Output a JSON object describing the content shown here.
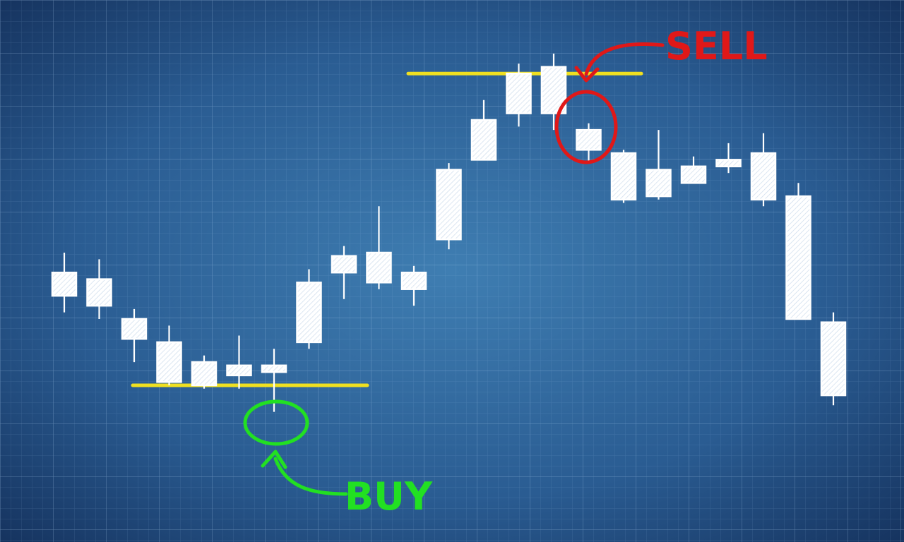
{
  "chart_data": {
    "type": "candlestick",
    "title": "",
    "xlabel": "",
    "ylabel": "",
    "ylim": [
      0,
      100
    ],
    "grid": true,
    "candles": [
      {
        "open": 54,
        "close": 47,
        "high": 60,
        "low": 42
      },
      {
        "open": 52,
        "close": 44,
        "high": 58,
        "low": 40
      },
      {
        "open": 40,
        "close": 34,
        "high": 43,
        "low": 27
      },
      {
        "open": 33,
        "close": 21,
        "high": 38,
        "low": 20
      },
      {
        "open": 27,
        "close": 20,
        "high": 29,
        "low": 19
      },
      {
        "open": 26,
        "close": 23,
        "high": 35,
        "low": 19
      },
      {
        "open": 26,
        "close": 24,
        "high": 31,
        "low": 12
      },
      {
        "open": 33,
        "close": 51,
        "high": 55,
        "low": 31
      },
      {
        "open": 59,
        "close": 54,
        "high": 62,
        "low": 46
      },
      {
        "open": 60,
        "close": 51,
        "high": 74,
        "low": 49
      },
      {
        "open": 54,
        "close": 49,
        "high": 56,
        "low": 44
      },
      {
        "open": 64,
        "close": 85,
        "high": 87,
        "low": 61
      },
      {
        "open": 88,
        "close": 100,
        "high": 106,
        "low": 88
      },
      {
        "open": 102,
        "close": 114,
        "high": 117,
        "low": 98
      },
      {
        "open": 116,
        "close": 102,
        "high": 120,
        "low": 97
      },
      {
        "open": 97,
        "close": 91,
        "high": 99,
        "low": 87
      },
      {
        "open": 90,
        "close": 76,
        "high": 91,
        "low": 75
      },
      {
        "open": 77,
        "close": 85,
        "high": 97,
        "low": 76
      },
      {
        "open": 86,
        "close": 81,
        "high": 89,
        "low": 81
      },
      {
        "open": 88,
        "close": 86,
        "high": 93,
        "low": 84
      },
      {
        "open": 90,
        "close": 76,
        "high": 96,
        "low": 74
      },
      {
        "open": 77,
        "close": 40,
        "high": 81,
        "low": 40
      },
      {
        "open": 39,
        "close": 17,
        "high": 42,
        "low": 14
      }
    ],
    "annotations": {
      "buy": {
        "label": "BUY",
        "color": "#22e022",
        "support_level": 20,
        "candle_index": 6
      },
      "sell": {
        "label": "SELL",
        "color": "#e01818",
        "resistance_level": 114,
        "candle_index": 15
      }
    },
    "line_color": "#f0e020",
    "candle_color": "#ffffff",
    "background_color": "#1d3f6e"
  }
}
